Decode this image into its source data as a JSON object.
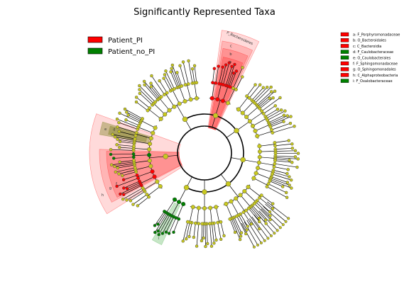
{
  "title": "Significantly Represented Taxa",
  "colors": {
    "patient_pi": "#ff0000",
    "patient_no_pi": "#008000",
    "node_default": "#c8c820",
    "branch": "#000000",
    "shade_red": "#ff3030",
    "shade_green": "#5cb85c",
    "shade_olive": "#8a8a30"
  },
  "legend": [
    {
      "label": "Patient_PI",
      "color": "#ff0000"
    },
    {
      "label": "Patient_no_PI",
      "color": "#008000"
    }
  ],
  "clade_key": [
    {
      "text": "a: F_Porphyromonadaceae",
      "color": "#ff0000"
    },
    {
      "text": "b: O_Bacteroidales",
      "color": "#ff0000"
    },
    {
      "text": "c: C_Bacteroidia",
      "color": "#ff0000"
    },
    {
      "text": "d: F_Caulobacteraceae",
      "color": "#008000"
    },
    {
      "text": "e: O_Caulobacterales",
      "color": "#008000"
    },
    {
      "text": "f: F_Sphingomonadaceae",
      "color": "#ff0000"
    },
    {
      "text": "g: O_Sphingomonadales",
      "color": "#ff0000"
    },
    {
      "text": "h: C_Alphaproteobacteria",
      "color": "#ff0000"
    },
    {
      "text": "i: F_Oxalobacteraceae",
      "color": "#008000"
    }
  ],
  "clade_labels": {
    "bacteroidetes": "P_Bacteroidetes",
    "a": "a",
    "b": "b",
    "c": "c",
    "d": "d",
    "e": "e",
    "f": "f",
    "g": "g",
    "h": "h",
    "i": "i"
  }
}
